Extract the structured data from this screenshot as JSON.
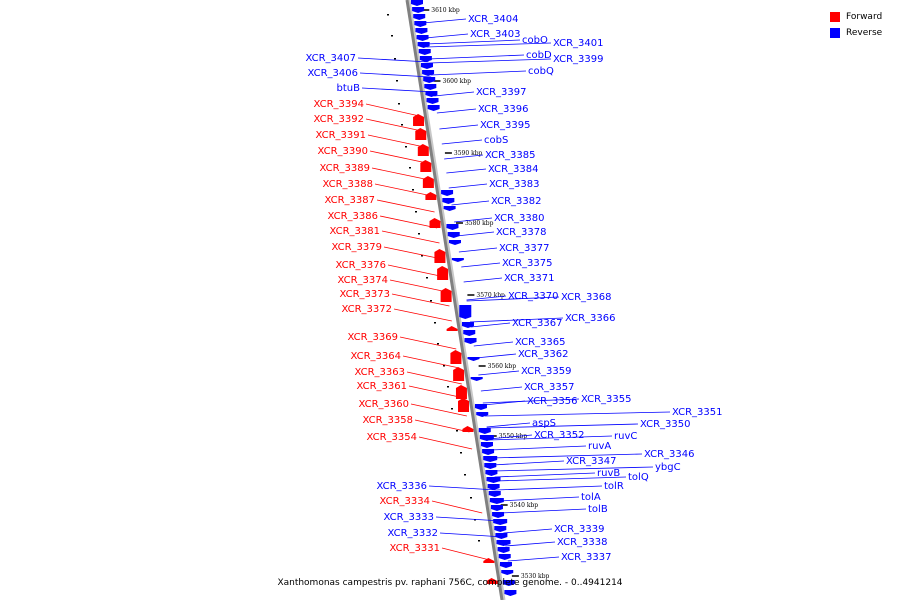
{
  "caption": "Xanthomonas campestris pv. raphani 756C, complete genome. - 0..4941214",
  "legend": [
    {
      "label": "Forward",
      "color": "#ff0000"
    },
    {
      "label": "Reverse",
      "color": "#0000ff"
    }
  ],
  "strand_colors": {
    "forward": "#ff0000",
    "reverse": "#0000ff"
  },
  "backbone_color": "#808080",
  "ticks": [
    "3610 kbp",
    "3600 kbp",
    "3590 kbp",
    "3580 kbp",
    "3570 kbp",
    "3560 kbp",
    "3550 kbp",
    "3540 kbp",
    "3530 kbp"
  ],
  "genes": [
    {
      "label": "XCR_3404",
      "strand": "reverse"
    },
    {
      "label": "XCR_3403",
      "strand": "reverse"
    },
    {
      "label": "cobO",
      "strand": "reverse"
    },
    {
      "label": "XCR_3401",
      "strand": "reverse"
    },
    {
      "label": "cobD",
      "strand": "reverse"
    },
    {
      "label": "XCR_3399",
      "strand": "reverse"
    },
    {
      "label": "cobQ",
      "strand": "reverse"
    },
    {
      "label": "XCR_3407",
      "strand": "reverse"
    },
    {
      "label": "XCR_3406",
      "strand": "reverse"
    },
    {
      "label": "btuB",
      "strand": "reverse"
    },
    {
      "label": "XCR_3397",
      "strand": "reverse"
    },
    {
      "label": "XCR_3396",
      "strand": "reverse"
    },
    {
      "label": "XCR_3395",
      "strand": "reverse"
    },
    {
      "label": "cobS",
      "strand": "reverse"
    },
    {
      "label": "XCR_3385",
      "strand": "reverse"
    },
    {
      "label": "XCR_3384",
      "strand": "reverse"
    },
    {
      "label": "XCR_3383",
      "strand": "reverse"
    },
    {
      "label": "XCR_3382",
      "strand": "reverse"
    },
    {
      "label": "XCR_3380",
      "strand": "reverse"
    },
    {
      "label": "XCR_3378",
      "strand": "reverse"
    },
    {
      "label": "XCR_3377",
      "strand": "reverse"
    },
    {
      "label": "XCR_3375",
      "strand": "reverse"
    },
    {
      "label": "XCR_3371",
      "strand": "reverse"
    },
    {
      "label": "XCR_3370",
      "strand": "reverse"
    },
    {
      "label": "XCR_3368",
      "strand": "reverse"
    },
    {
      "label": "XCR_3367",
      "strand": "reverse"
    },
    {
      "label": "XCR_3366",
      "strand": "reverse"
    },
    {
      "label": "XCR_3365",
      "strand": "reverse"
    },
    {
      "label": "XCR_3362",
      "strand": "reverse"
    },
    {
      "label": "XCR_3359",
      "strand": "reverse"
    },
    {
      "label": "XCR_3357",
      "strand": "reverse"
    },
    {
      "label": "XCR_3356",
      "strand": "reverse"
    },
    {
      "label": "XCR_3355",
      "strand": "reverse"
    },
    {
      "label": "XCR_3351",
      "strand": "reverse"
    },
    {
      "label": "aspS",
      "strand": "reverse"
    },
    {
      "label": "XCR_3350",
      "strand": "reverse"
    },
    {
      "label": "XCR_3352",
      "strand": "reverse"
    },
    {
      "label": "ruvC",
      "strand": "reverse"
    },
    {
      "label": "ruvA",
      "strand": "reverse"
    },
    {
      "label": "XCR_3346",
      "strand": "reverse"
    },
    {
      "label": "XCR_3347",
      "strand": "reverse"
    },
    {
      "label": "ybgC",
      "strand": "reverse"
    },
    {
      "label": "ruvB",
      "strand": "reverse"
    },
    {
      "label": "tolQ",
      "strand": "reverse"
    },
    {
      "label": "tolR",
      "strand": "reverse"
    },
    {
      "label": "tolA",
      "strand": "reverse"
    },
    {
      "label": "tolB",
      "strand": "reverse"
    },
    {
      "label": "XCR_3339",
      "strand": "reverse"
    },
    {
      "label": "XCR_3338",
      "strand": "reverse"
    },
    {
      "label": "XCR_3337",
      "strand": "reverse"
    },
    {
      "label": "XCR_3394",
      "strand": "forward"
    },
    {
      "label": "XCR_3392",
      "strand": "forward"
    },
    {
      "label": "XCR_3391",
      "strand": "forward"
    },
    {
      "label": "XCR_3390",
      "strand": "forward"
    },
    {
      "label": "XCR_3389",
      "strand": "forward"
    },
    {
      "label": "XCR_3388",
      "strand": "forward"
    },
    {
      "label": "XCR_3387",
      "strand": "forward"
    },
    {
      "label": "XCR_3386",
      "strand": "forward"
    },
    {
      "label": "XCR_3381",
      "strand": "forward"
    },
    {
      "label": "XCR_3379",
      "strand": "forward"
    },
    {
      "label": "XCR_3376",
      "strand": "forward"
    },
    {
      "label": "XCR_3374",
      "strand": "forward"
    },
    {
      "label": "XCR_3373",
      "strand": "forward"
    },
    {
      "label": "XCR_3372",
      "strand": "forward"
    },
    {
      "label": "XCR_3369",
      "strand": "forward"
    },
    {
      "label": "XCR_3364",
      "strand": "forward"
    },
    {
      "label": "XCR_3363",
      "strand": "forward"
    },
    {
      "label": "XCR_3361",
      "strand": "forward"
    },
    {
      "label": "XCR_3360",
      "strand": "forward"
    },
    {
      "label": "XCR_3358",
      "strand": "forward"
    },
    {
      "label": "XCR_3354",
      "strand": "forward"
    },
    {
      "label": "XCR_3336",
      "strand": "reverse"
    },
    {
      "label": "XCR_3334",
      "strand": "forward"
    },
    {
      "label": "XCR_3333",
      "strand": "reverse"
    },
    {
      "label": "XCR_3332",
      "strand": "reverse"
    },
    {
      "label": "XCR_3331",
      "strand": "forward"
    }
  ]
}
